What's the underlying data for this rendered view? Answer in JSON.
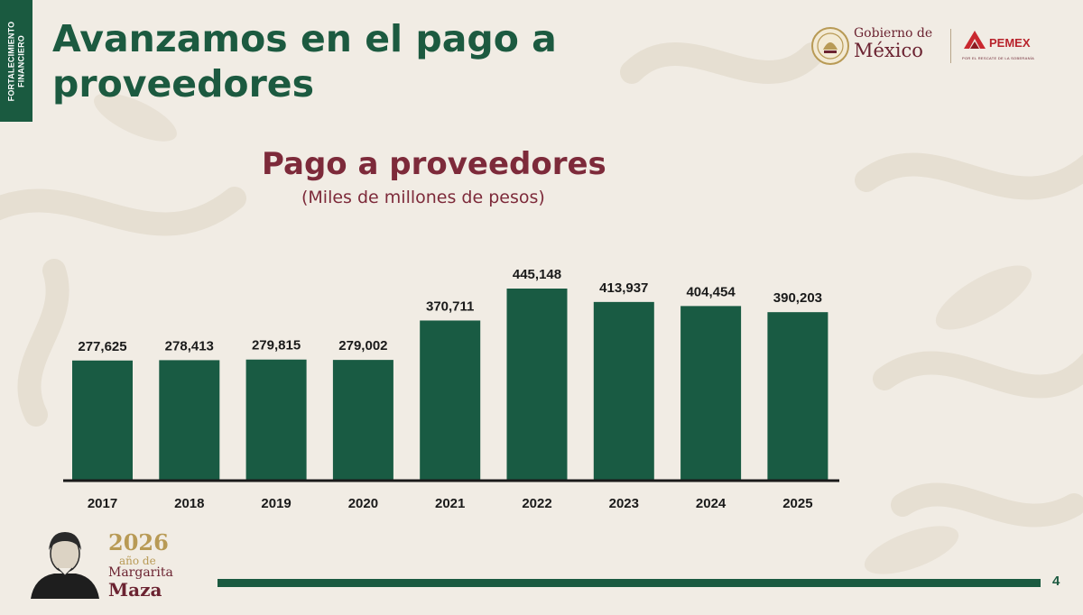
{
  "side_tab": {
    "line1": "FORTALECIMIENTO",
    "line2": "FINANCIERO"
  },
  "slide_title": "Avanzamos en el pago a proveedores",
  "logos": {
    "gobierno_line1": "Gobierno de",
    "gobierno_line2": "México",
    "pemex": "PEMEX",
    "pemex_tagline": "POR EL RESCATE DE LA SOBERANÍA"
  },
  "chart_data": {
    "type": "bar",
    "title": "Pago a proveedores",
    "subtitle": "(Miles de millones de pesos)",
    "categories": [
      "2017",
      "2018",
      "2019",
      "2020",
      "2021",
      "2022",
      "2023",
      "2024",
      "2025"
    ],
    "values": [
      277625,
      278413,
      279815,
      279002,
      370711,
      445148,
      413937,
      404454,
      390203
    ],
    "value_labels": [
      "277,625",
      "278,413",
      "279,815",
      "279,002",
      "370,711",
      "445,148",
      "413,937",
      "404,454",
      "390,203"
    ],
    "xlabel": "",
    "ylabel": "",
    "grid": false,
    "colors": {
      "bar": "#195b43",
      "axis": "#1a1a1a",
      "label": "#1a1a1a"
    }
  },
  "footer": {
    "year": "2026",
    "year_sub": "año de",
    "name_line1": "Margarita",
    "name_line2": "Maza",
    "page_number": "4"
  },
  "colors": {
    "primary_green": "#1a5a40",
    "wine": "#7d2a3a",
    "gold": "#b89a55",
    "background": "#f1ece4"
  }
}
